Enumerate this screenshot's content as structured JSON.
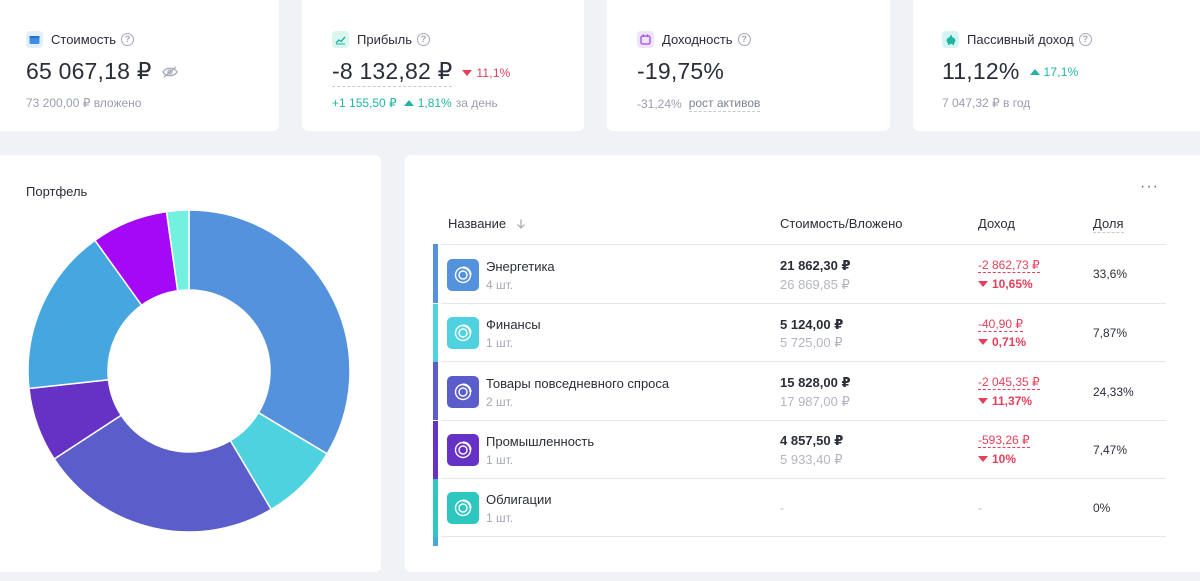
{
  "colors": {
    "energy": "#5592dd",
    "finance": "#4fd2e0",
    "consumer": "#5b5dcb",
    "industry": "#6631c5",
    "bonds": "#2ec7c0",
    "extra1": "#45a6e0",
    "extra2": "#a408f7",
    "extra3": "#74f1de",
    "negative": "#e5405b",
    "positive": "#1fb5a5"
  },
  "stats": {
    "cost": {
      "icon": "wallet-icon",
      "label": "Стоимость",
      "value": "65 067,18 ₽",
      "sub": "73 200,00 ₽ вложено"
    },
    "profit": {
      "icon": "chart-line-icon",
      "label": "Прибыль",
      "value": "-8 132,82 ₽",
      "change": "11,1%",
      "day_value": "+1 155,50 ₽",
      "day_pct": "1,81%",
      "day_suffix": "за день"
    },
    "yield": {
      "icon": "calendar-icon",
      "label": "Доходность",
      "value": "-19,75%",
      "sub_value": "-31,24%",
      "sub_label": "рост активов"
    },
    "passive": {
      "icon": "piggy-bank-icon",
      "label": "Пассивный доход",
      "value": "11,12%",
      "change": "17,1%",
      "sub": "7 047,32 ₽ в год"
    }
  },
  "portfolio": {
    "title": "Портфель"
  },
  "chart_data": {
    "type": "pie",
    "donut": true,
    "slices": [
      {
        "value": 33.6,
        "color": "#5592dd"
      },
      {
        "value": 7.87,
        "color": "#4fd2e0"
      },
      {
        "value": 24.33,
        "color": "#5b5dcb"
      },
      {
        "value": 7.47,
        "color": "#6631c5"
      },
      {
        "value": 16.8,
        "color": "#45a6e0"
      },
      {
        "value": 7.7,
        "color": "#a408f7"
      },
      {
        "value": 2.23,
        "color": "#74f1de"
      }
    ]
  },
  "table": {
    "more_label": "···",
    "headers": {
      "name": "Название",
      "value": "Стоимость/Вложено",
      "income": "Доход",
      "share": "Доля"
    },
    "rows": [
      {
        "name": "Энергетика",
        "count": "4 шт.",
        "value": "21 862,30 ₽",
        "invested": "26 869,85 ₽",
        "income": "-2 862,73 ₽",
        "income_pct": "10,65%",
        "share": "33,6%"
      },
      {
        "name": "Финансы",
        "count": "1 шт.",
        "value": "5 124,00 ₽",
        "invested": "5 725,00 ₽",
        "income": "-40,90 ₽",
        "income_pct": "0,71%",
        "share": "7,87%"
      },
      {
        "name": "Товары повседневного спроса",
        "count": "2 шт.",
        "value": "15 828,00 ₽",
        "invested": "17 987,00 ₽",
        "income": "-2 045,35 ₽",
        "income_pct": "11,37%",
        "share": "24,33%"
      },
      {
        "name": "Промышленность",
        "count": "1 шт.",
        "value": "4 857,50 ₽",
        "invested": "5 933,40 ₽",
        "income": "-593,26 ₽",
        "income_pct": "10%",
        "share": "7,47%"
      },
      {
        "name": "Облигации",
        "count": "1 шт.",
        "value": "-",
        "income": "-",
        "share": "0%"
      }
    ]
  }
}
